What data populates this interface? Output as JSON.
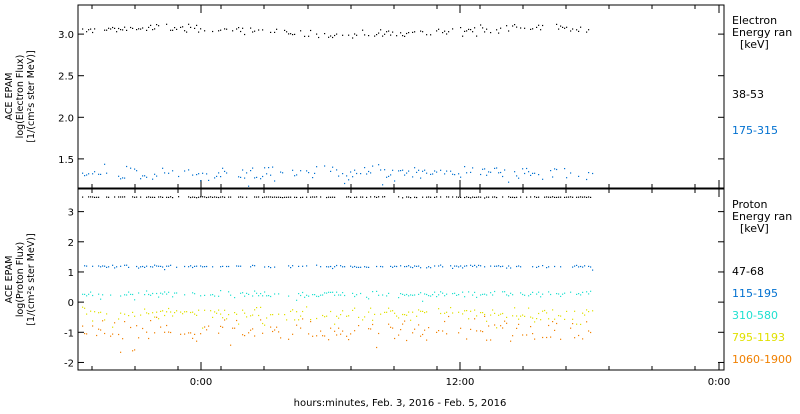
{
  "chart_data": [
    {
      "type": "scatter",
      "panel": "electron",
      "ylabel_lines": [
        "ACE EPAM",
        "log(Electron Flux)",
        "[1/(cm²s ster MeV)]"
      ],
      "ylim": [
        1.15,
        3.35
      ],
      "yticks": [
        1.5,
        2.0,
        2.5,
        3.0
      ],
      "ytick_labels": [
        "1.5",
        "2.0",
        "2.5",
        "3.0"
      ],
      "legend_title_lines": [
        "Electron",
        "Energy ran",
        "[keV]"
      ],
      "series": [
        {
          "name": "38-53",
          "color": "#000000",
          "mean": 3.04,
          "spread": 0.035,
          "trend": 0.04
        },
        {
          "name": "175-315",
          "color": "#0070d0",
          "mean": 1.33,
          "spread": 0.06,
          "trend": 0.0
        }
      ]
    },
    {
      "type": "scatter",
      "panel": "proton",
      "ylabel_lines": [
        "ACE EPAM",
        "log(Proton Flux)",
        "[1/(cm²s ster MeV)]"
      ],
      "ylim": [
        -2.25,
        3.75
      ],
      "yticks": [
        -2,
        -1,
        0,
        1,
        2,
        3
      ],
      "ytick_labels": [
        "-2",
        "-1",
        "0",
        "1",
        "2",
        "3"
      ],
      "legend_title_lines": [
        "Proton",
        "Energy ran",
        "[keV]"
      ],
      "series": [
        {
          "name": "47-68",
          "color": "#000000",
          "mean": 3.5,
          "spread": 0.01,
          "trend": 0.0
        },
        {
          "name": "115-195",
          "color": "#0070d0",
          "mean": 1.2,
          "spread": 0.035,
          "trend": 0.0
        },
        {
          "name": "310-580",
          "color": "#20e0d0",
          "mean": 0.28,
          "spread": 0.07,
          "trend": 0.0
        },
        {
          "name": "795-1193",
          "color": "#e0e000",
          "mean": -0.35,
          "spread": 0.15,
          "trend": 0.0
        },
        {
          "name": "1060-1900",
          "color": "#f08000",
          "mean": -0.95,
          "spread": 0.28,
          "trend": 0.0
        }
      ]
    }
  ],
  "x_axis": {
    "tick_labels": [
      "0:00",
      "12:00",
      "0:00"
    ],
    "xlabel": "hours:minutes, Feb.  3, 2016 - Feb.  5, 2016"
  }
}
